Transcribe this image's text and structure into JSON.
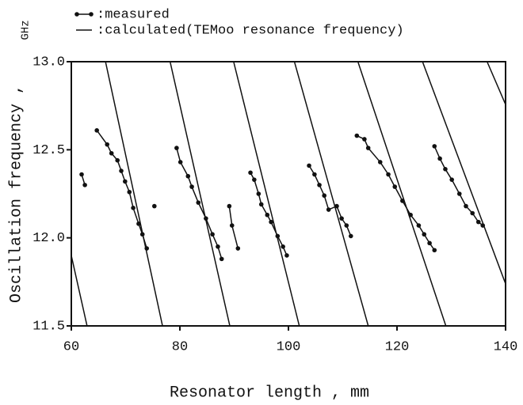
{
  "chart_data": {
    "type": "line",
    "unit_label": "GHz",
    "y_label": "Oscillation frequency ,",
    "x_label": "Resonator length , mm",
    "xlim": [
      60,
      140
    ],
    "ylim": [
      11.5,
      13.0
    ],
    "xticks": [
      60,
      80,
      100,
      120,
      140
    ],
    "yticks": [
      11.5,
      {
        "value": 12,
        "label": "12.0"
      },
      12.5,
      {
        "value": 13,
        "label": "13.0"
      }
    ],
    "series": [
      {
        "name": ":measured",
        "color": "#111111",
        "style": "points-line",
        "segments": [
          {
            "x": [
              61.9,
              62.5
            ],
            "values": [
              12.36,
              12.3
            ]
          },
          {
            "x": [
              64.7,
              66.6,
              67.4,
              68.5,
              69.2,
              69.9,
              70.7,
              71.4,
              72.4,
              73.1,
              73.9
            ],
            "values": [
              12.61,
              12.53,
              12.48,
              12.44,
              12.38,
              12.32,
              12.26,
              12.17,
              12.08,
              12.02,
              11.94
            ]
          },
          {
            "x": [
              75.3
            ],
            "values": [
              12.18
            ]
          },
          {
            "x": [
              79.4,
              80.1,
              81.5,
              82.2,
              83.4,
              84.8,
              86.0,
              87.0,
              87.7
            ],
            "values": [
              12.51,
              12.43,
              12.35,
              12.29,
              12.2,
              12.11,
              12.02,
              11.95,
              11.88
            ]
          },
          {
            "x": [
              89.1,
              89.6,
              90.7
            ],
            "values": [
              12.18,
              12.07,
              11.94
            ]
          },
          {
            "x": [
              93.0,
              93.7,
              94.5,
              95.0,
              96.1,
              96.8,
              98.0,
              99.0,
              99.7
            ],
            "values": [
              12.37,
              12.33,
              12.25,
              12.19,
              12.13,
              12.09,
              12.01,
              11.95,
              11.9
            ]
          },
          {
            "x": [
              103.8,
              104.8,
              105.7,
              106.6,
              107.4,
              108.9,
              109.8,
              110.7,
              111.5
            ],
            "values": [
              12.41,
              12.36,
              12.3,
              12.24,
              12.16,
              12.18,
              12.11,
              12.07,
              12.01
            ]
          },
          {
            "x": [
              112.6,
              114.0,
              114.7,
              116.9,
              118.4,
              119.6,
              121.0,
              122.5,
              124.0,
              125.0,
              126.0,
              126.9
            ],
            "values": [
              12.58,
              12.56,
              12.51,
              12.43,
              12.36,
              12.29,
              12.21,
              12.13,
              12.07,
              12.02,
              11.97,
              11.93
            ]
          },
          {
            "x": [
              126.9,
              127.9,
              128.9,
              130.1,
              131.5,
              132.7,
              133.9,
              135.0,
              135.8
            ],
            "values": [
              12.52,
              12.45,
              12.39,
              12.33,
              12.25,
              12.18,
              12.14,
              12.09,
              12.07
            ]
          }
        ]
      },
      {
        "name": ":calculated(TEMoo resonance frequency)",
        "color": "#111111",
        "style": "line",
        "segments": [
          {
            "x": [
              52.0,
              62.9
            ],
            "values": [
              13.0,
              11.5
            ]
          },
          {
            "x": [
              66.3,
              76.8
            ],
            "values": [
              13.0,
              11.5
            ]
          },
          {
            "x": [
              78.2,
              89.2
            ],
            "values": [
              13.0,
              11.5
            ]
          },
          {
            "x": [
              89.9,
              102.0
            ],
            "values": [
              13.0,
              11.5
            ]
          },
          {
            "x": [
              101.1,
              114.7
            ],
            "values": [
              13.0,
              11.5
            ]
          },
          {
            "x": [
              112.8,
              129.0
            ],
            "values": [
              13.0,
              11.5
            ]
          },
          {
            "x": [
              124.7,
              142.9
            ],
            "values": [
              13.0,
              11.5
            ]
          },
          {
            "x": [
              136.6,
              157.6
            ],
            "values": [
              13.0,
              11.5
            ]
          }
        ]
      }
    ]
  }
}
